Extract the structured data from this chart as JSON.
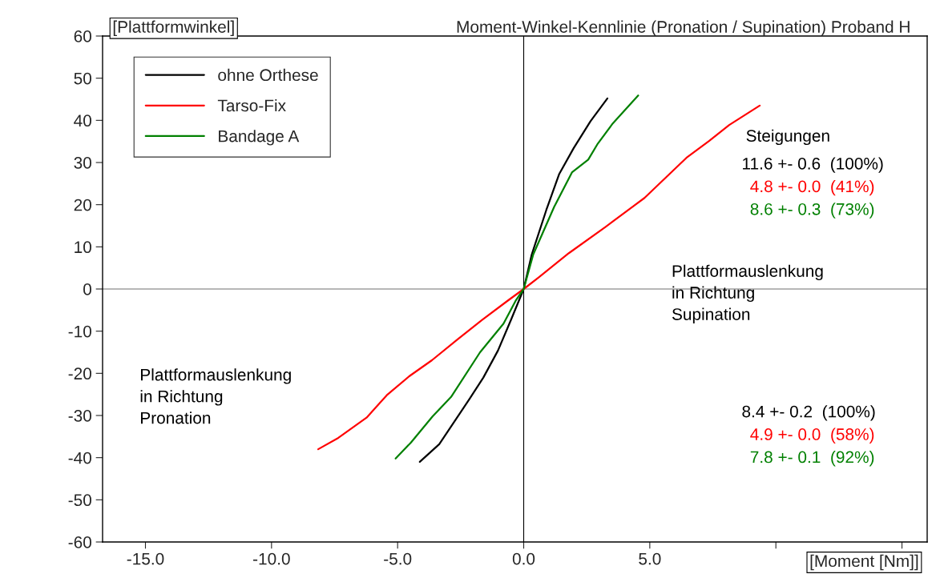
{
  "chart_data": {
    "type": "line",
    "title": "Moment-Winkel-Kennlinie (Pronation / Supination) Proband H",
    "xlabel": "[Moment [Nm]]",
    "ylabel": "[Plattformwinkel]",
    "xlim": [
      -16.7,
      16.0
    ],
    "ylim": [
      -60,
      60
    ],
    "xticks": [
      {
        "value": -15,
        "label": "-15.0"
      },
      {
        "value": -10,
        "label": "-10.0"
      },
      {
        "value": -5,
        "label": "-5.0"
      },
      {
        "value": 0,
        "label": "0.0"
      },
      {
        "value": 5,
        "label": "5.0"
      },
      {
        "value": 10,
        "label": null
      },
      {
        "value": 15,
        "label": null
      }
    ],
    "yticks": [
      -60,
      -50,
      -40,
      -30,
      -20,
      -10,
      0,
      10,
      20,
      30,
      40,
      50,
      60
    ],
    "grid": false,
    "legend": "top left",
    "line_style": "solid",
    "marker": "none",
    "series": [
      {
        "name": "ohne Orthese",
        "color": "#000000",
        "x": [
          -4.12,
          -3.35,
          -2.14,
          -1.6,
          -1.02,
          -0.51,
          0,
          0.32,
          0.9,
          1.41,
          1.98,
          2.65,
          3.32
        ],
        "values": [
          -41,
          -36.8,
          -26,
          -21,
          -14.6,
          -7.4,
          0,
          8.2,
          18.8,
          27.3,
          33.4,
          39.8,
          45.2
        ]
      },
      {
        "name": "Tarso-Fix",
        "color": "#ff0000",
        "x": [
          -8.15,
          -7.35,
          -6.23,
          -5.43,
          -4.54,
          -3.64,
          -2.65,
          -1.66,
          -0.64,
          0,
          0.58,
          1.79,
          3.26,
          4.79,
          6.45,
          7.35,
          8.15,
          9.36
        ],
        "values": [
          -38,
          -35.3,
          -30.5,
          -25.2,
          -20.7,
          -16.9,
          -12.1,
          -7.4,
          -2.8,
          0,
          2.7,
          8.5,
          14.8,
          21.6,
          31.1,
          35.1,
          38.9,
          43.5
        ]
      },
      {
        "name": "Bandage A",
        "color": "#008000",
        "x": [
          -5.08,
          -4.47,
          -3.61,
          -2.88,
          -1.73,
          -0.8,
          -0.32,
          0,
          0.38,
          1.21,
          1.92,
          2.56,
          2.94,
          3.51,
          4.54
        ],
        "values": [
          -40.2,
          -36.4,
          -30.2,
          -25.6,
          -15,
          -8.2,
          -2.8,
          0,
          8.2,
          19.5,
          27.7,
          30.7,
          34.5,
          39.1,
          45.9
        ]
      }
    ],
    "ref_lines": [
      {
        "axis": "x",
        "value": 0,
        "color": "#000000"
      },
      {
        "axis": "y",
        "value": 0,
        "color": "#707070"
      }
    ],
    "annotations": [
      "Steigungen",
      "11.6 +- 0.6  (100%)",
      "4.8 +- 0.0  (41%)",
      "8.6 +- 0.3  (73%)",
      "Plattformauslenkung\nin Richtung\nSupination",
      "Plattformauslenkung\nin Richtung\nPronation",
      "8.4 +- 0.2  (100%)",
      "4.9 +- 0.0  (58%)",
      "7.8 +- 0.1  (92%)"
    ]
  }
}
